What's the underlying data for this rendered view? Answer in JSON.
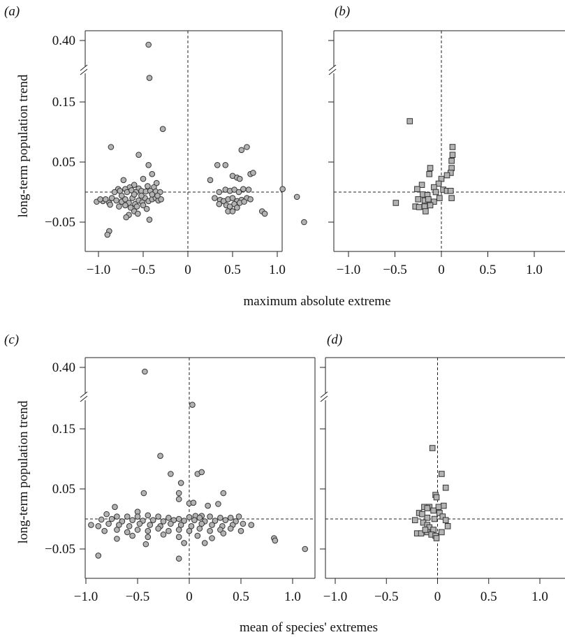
{
  "figure": {
    "xlabel_top": "maximum absolute extreme",
    "xlabel_bottom": "mean of species' extremes",
    "ylabel": "long-term population trend"
  },
  "chart_data": [
    {
      "panel": "(a)",
      "type": "scatter",
      "marker": "circle",
      "xlabel": "maximum absolute extreme",
      "ylabel": "long-term population trend",
      "xlim": [
        -1.1,
        1.35
      ],
      "x_ticks": [
        "−1.0",
        "−0.5",
        "0",
        "0.5",
        "1.0"
      ],
      "x_tick_values": [
        -1.0,
        -0.5,
        0,
        0.5,
        1.0
      ],
      "y_ticks": [
        "0.40",
        "0.15",
        "0.05",
        "−0.05"
      ],
      "y_tick_values": [
        0.4,
        0.15,
        0.05,
        -0.05
      ],
      "y_axis_break": true,
      "reference_lines": {
        "x": 0,
        "y": 0
      },
      "points": [
        [
          -0.44,
          0.385
        ],
        [
          -0.43,
          0.19
        ],
        [
          -0.28,
          0.105
        ],
        [
          -0.86,
          0.075
        ],
        [
          -0.55,
          0.062
        ],
        [
          -0.44,
          0.045
        ],
        [
          -0.4,
          0.03
        ],
        [
          -0.72,
          0.02
        ],
        [
          -0.5,
          0.022
        ],
        [
          -0.35,
          0.015
        ],
        [
          -0.6,
          0.012
        ],
        [
          -0.65,
          0.008
        ],
        [
          -0.78,
          0.005
        ],
        [
          -0.7,
          0.005
        ],
        [
          -0.55,
          0.006
        ],
        [
          -0.45,
          0.01
        ],
        [
          -0.38,
          0.008
        ],
        [
          -0.82,
          0.0
        ],
        [
          -0.76,
          0.002
        ],
        [
          -0.68,
          0.0
        ],
        [
          -0.63,
          0.003
        ],
        [
          -0.58,
          0.0
        ],
        [
          -0.52,
          0.002
        ],
        [
          -0.47,
          0.001
        ],
        [
          -0.42,
          0.002
        ],
        [
          -0.36,
          0.001
        ],
        [
          -0.31,
          0.0
        ],
        [
          -0.95,
          -0.015
        ],
        [
          -0.92,
          -0.012
        ],
        [
          -0.88,
          -0.018
        ],
        [
          -0.85,
          -0.01
        ],
        [
          -0.8,
          -0.014
        ],
        [
          -0.74,
          -0.016
        ],
        [
          -0.7,
          -0.012
        ],
        [
          -0.66,
          -0.018
        ],
        [
          -0.62,
          -0.01
        ],
        [
          -0.59,
          -0.02
        ],
        [
          -0.55,
          -0.014
        ],
        [
          -0.51,
          -0.017
        ],
        [
          -0.48,
          -0.01
        ],
        [
          -0.44,
          -0.015
        ],
        [
          -0.4,
          -0.012
        ],
        [
          -0.36,
          -0.01
        ],
        [
          -0.33,
          -0.014
        ],
        [
          -0.3,
          -0.012
        ],
        [
          -1.02,
          -0.016
        ],
        [
          -0.87,
          -0.021
        ],
        [
          -0.77,
          -0.024
        ],
        [
          -0.7,
          -0.022
        ],
        [
          -0.64,
          -0.026
        ],
        [
          -0.57,
          -0.024
        ],
        [
          -0.5,
          -0.022
        ],
        [
          -0.46,
          -0.028
        ],
        [
          -0.6,
          -0.032
        ],
        [
          -0.66,
          -0.038
        ],
        [
          -0.69,
          -0.042
        ],
        [
          -0.56,
          -0.036
        ],
        [
          -0.43,
          -0.046
        ],
        [
          -0.88,
          -0.065
        ],
        [
          -0.9,
          -0.071
        ],
        [
          -0.98,
          -0.012
        ],
        [
          -0.74,
          -0.006
        ],
        [
          -0.6,
          -0.004
        ],
        [
          -0.52,
          -0.006
        ],
        [
          -0.4,
          -0.004
        ],
        [
          -0.34,
          -0.006
        ],
        [
          0.33,
          0.045
        ],
        [
          0.42,
          0.045
        ],
        [
          0.25,
          0.02
        ],
        [
          0.5,
          0.027
        ],
        [
          0.55,
          0.024
        ],
        [
          0.58,
          0.022
        ],
        [
          0.6,
          0.07
        ],
        [
          0.66,
          0.075
        ],
        [
          0.7,
          0.03
        ],
        [
          0.73,
          0.032
        ],
        [
          0.35,
          0.0
        ],
        [
          0.42,
          0.004
        ],
        [
          0.47,
          0.002
        ],
        [
          0.52,
          0.004
        ],
        [
          0.57,
          0.0
        ],
        [
          0.62,
          0.005
        ],
        [
          0.68,
          0.004
        ],
        [
          0.3,
          -0.01
        ],
        [
          0.36,
          -0.013
        ],
        [
          0.4,
          -0.015
        ],
        [
          0.45,
          -0.012
        ],
        [
          0.5,
          -0.01
        ],
        [
          0.55,
          -0.015
        ],
        [
          0.6,
          -0.013
        ],
        [
          0.66,
          -0.01
        ],
        [
          0.7,
          -0.012
        ],
        [
          0.35,
          -0.02
        ],
        [
          0.43,
          -0.022
        ],
        [
          0.47,
          -0.024
        ],
        [
          0.52,
          -0.02
        ],
        [
          0.58,
          -0.018
        ],
        [
          0.63,
          -0.016
        ],
        [
          0.45,
          -0.032
        ],
        [
          0.5,
          -0.032
        ],
        [
          0.55,
          -0.026
        ],
        [
          0.83,
          -0.032
        ],
        [
          0.86,
          -0.036
        ],
        [
          1.06,
          0.005
        ],
        [
          1.22,
          -0.008
        ],
        [
          1.3,
          -0.05
        ]
      ]
    },
    {
      "panel": "(b)",
      "type": "scatter",
      "marker": "square",
      "xlim": [
        -1.1,
        1.35
      ],
      "x_ticks": [
        "−1.0",
        "−0.5",
        "0",
        "0.5",
        "1.0"
      ],
      "x_tick_values": [
        -1.0,
        -0.5,
        0,
        0.5,
        1.0
      ],
      "y_axis_break": true,
      "reference_lines": {
        "x": 0,
        "y": 0
      },
      "points": [
        [
          -0.34,
          0.118
        ],
        [
          0.12,
          0.075
        ],
        [
          0.12,
          0.062
        ],
        [
          0.11,
          0.052
        ],
        [
          0.11,
          0.04
        ],
        [
          0.1,
          0.032
        ],
        [
          0.06,
          0.028
        ],
        [
          -0.12,
          0.04
        ],
        [
          -0.13,
          0.03
        ],
        [
          0.0,
          0.022
        ],
        [
          -0.03,
          0.014
        ],
        [
          -0.21,
          0.012
        ],
        [
          -0.08,
          0.008
        ],
        [
          0.02,
          0.004
        ],
        [
          0.06,
          0.002
        ],
        [
          0.1,
          0.002
        ],
        [
          -0.26,
          0.005
        ],
        [
          -0.2,
          -0.004
        ],
        [
          -0.15,
          -0.005
        ],
        [
          -0.06,
          0.0
        ],
        [
          -0.25,
          -0.012
        ],
        [
          -0.18,
          -0.014
        ],
        [
          -0.14,
          -0.012
        ],
        [
          -0.08,
          -0.016
        ],
        [
          -0.49,
          -0.018
        ],
        [
          -0.28,
          -0.024
        ],
        [
          -0.24,
          -0.025
        ],
        [
          -0.18,
          -0.024
        ],
        [
          -0.12,
          -0.022
        ],
        [
          -0.02,
          -0.01
        ],
        [
          0.11,
          -0.01
        ],
        [
          -0.17,
          -0.032
        ]
      ]
    },
    {
      "panel": "(c)",
      "type": "scatter",
      "marker": "circle",
      "xlabel": "mean of species' extremes",
      "ylabel": "long-term population trend",
      "xlim": [
        -1.1,
        1.2
      ],
      "x_ticks": [
        "−1.0",
        "−0.5",
        "0",
        "0.5",
        "1.0"
      ],
      "x_tick_values": [
        -1.0,
        -0.5,
        0,
        0.5,
        1.0
      ],
      "y_ticks": [
        "0.40",
        "0.15",
        "0.05",
        "−0.05"
      ],
      "y_tick_values": [
        0.4,
        0.15,
        0.05,
        -0.05
      ],
      "y_axis_break": true,
      "reference_lines": {
        "x": 0,
        "y": 0
      },
      "points": [
        [
          -0.43,
          0.385
        ],
        [
          0.03,
          0.19
        ],
        [
          -0.28,
          0.105
        ],
        [
          -0.18,
          0.075
        ],
        [
          0.08,
          0.075
        ],
        [
          0.12,
          0.078
        ],
        [
          -0.08,
          0.06
        ],
        [
          -0.44,
          0.043
        ],
        [
          0.0,
          0.026
        ],
        [
          0.04,
          0.027
        ],
        [
          -0.1,
          0.043
        ],
        [
          0.33,
          0.043
        ],
        [
          -0.1,
          0.033
        ],
        [
          0.18,
          0.022
        ],
        [
          0.28,
          0.025
        ],
        [
          -0.72,
          0.02
        ],
        [
          -0.5,
          0.012
        ],
        [
          0.06,
          0.005
        ],
        [
          0.12,
          0.005
        ],
        [
          -0.8,
          0.008
        ],
        [
          -0.7,
          0.004
        ],
        [
          -0.6,
          0.004
        ],
        [
          -0.5,
          0.004
        ],
        [
          -0.4,
          0.006
        ],
        [
          -0.3,
          0.004
        ],
        [
          -0.2,
          0.002
        ],
        [
          -0.1,
          0.0
        ],
        [
          0.0,
          0.003
        ],
        [
          0.1,
          0.002
        ],
        [
          0.2,
          0.004
        ],
        [
          0.3,
          0.002
        ],
        [
          0.4,
          0.002
        ],
        [
          0.48,
          0.004
        ],
        [
          -0.85,
          -0.001
        ],
        [
          -0.75,
          0.0
        ],
        [
          -0.65,
          -0.004
        ],
        [
          -0.55,
          -0.002
        ],
        [
          -0.45,
          -0.003
        ],
        [
          -0.35,
          -0.002
        ],
        [
          -0.25,
          -0.004
        ],
        [
          -0.15,
          -0.002
        ],
        [
          -0.05,
          -0.003
        ],
        [
          0.05,
          -0.002
        ],
        [
          0.15,
          -0.004
        ],
        [
          0.25,
          -0.003
        ],
        [
          0.35,
          -0.002
        ],
        [
          0.45,
          -0.004
        ],
        [
          -0.95,
          -0.01
        ],
        [
          -0.88,
          -0.012
        ],
        [
          -0.78,
          -0.008
        ],
        [
          -0.68,
          -0.01
        ],
        [
          -0.58,
          -0.012
        ],
        [
          -0.48,
          -0.008
        ],
        [
          -0.38,
          -0.01
        ],
        [
          -0.28,
          -0.012
        ],
        [
          -0.18,
          -0.008
        ],
        [
          -0.08,
          -0.01
        ],
        [
          0.02,
          -0.012
        ],
        [
          0.12,
          -0.008
        ],
        [
          0.22,
          -0.01
        ],
        [
          0.32,
          -0.012
        ],
        [
          0.42,
          -0.01
        ],
        [
          0.52,
          -0.008
        ],
        [
          0.6,
          -0.01
        ],
        [
          -0.82,
          -0.02
        ],
        [
          -0.7,
          -0.018
        ],
        [
          -0.6,
          -0.022
        ],
        [
          -0.5,
          -0.018
        ],
        [
          -0.4,
          -0.02
        ],
        [
          -0.3,
          -0.016
        ],
        [
          -0.2,
          -0.02
        ],
        [
          -0.1,
          -0.018
        ],
        [
          0.0,
          -0.02
        ],
        [
          0.1,
          -0.016
        ],
        [
          0.2,
          -0.02
        ],
        [
          0.3,
          -0.018
        ],
        [
          0.4,
          -0.016
        ],
        [
          0.5,
          -0.02
        ],
        [
          -0.7,
          -0.033
        ],
        [
          -0.55,
          -0.028
        ],
        [
          -0.4,
          -0.03
        ],
        [
          -0.25,
          -0.026
        ],
        [
          -0.1,
          -0.03
        ],
        [
          0.08,
          -0.028
        ],
        [
          0.22,
          -0.032
        ],
        [
          0.33,
          -0.024
        ],
        [
          0.82,
          -0.032
        ],
        [
          0.83,
          -0.036
        ],
        [
          -0.42,
          -0.042
        ],
        [
          -0.05,
          -0.04
        ],
        [
          0.15,
          -0.04
        ],
        [
          -0.1,
          -0.066
        ],
        [
          -0.88,
          -0.061
        ],
        [
          1.12,
          -0.05
        ]
      ]
    },
    {
      "panel": "(d)",
      "type": "scatter",
      "marker": "square",
      "xlim": [
        -1.1,
        1.2
      ],
      "x_ticks": [
        "−1.0",
        "−0.5",
        "0",
        "0.5",
        "1.0"
      ],
      "x_tick_values": [
        -1.0,
        -0.5,
        0,
        0.5,
        1.0
      ],
      "y_axis_break": true,
      "reference_lines": {
        "x": 0,
        "y": 0
      },
      "points": [
        [
          -0.05,
          0.118
        ],
        [
          0.04,
          0.075
        ],
        [
          0.08,
          0.052
        ],
        [
          -0.02,
          0.04
        ],
        [
          -0.01,
          0.036
        ],
        [
          0.06,
          0.022
        ],
        [
          0.01,
          0.02
        ],
        [
          -0.13,
          0.02
        ],
        [
          -0.08,
          0.02
        ],
        [
          -0.1,
          0.018
        ],
        [
          -0.04,
          0.014
        ],
        [
          -0.18,
          0.01
        ],
        [
          -0.15,
          0.008
        ],
        [
          0.02,
          0.01
        ],
        [
          0.05,
          0.004
        ],
        [
          -0.1,
          0.002
        ],
        [
          0.08,
          -0.002
        ],
        [
          -0.03,
          0.0
        ],
        [
          -0.22,
          -0.002
        ],
        [
          -0.14,
          -0.006
        ],
        [
          -0.1,
          -0.01
        ],
        [
          0.1,
          -0.012
        ],
        [
          -0.08,
          -0.014
        ],
        [
          -0.04,
          -0.018
        ],
        [
          0.04,
          -0.022
        ],
        [
          -0.2,
          -0.024
        ],
        [
          -0.16,
          -0.024
        ],
        [
          -0.1,
          -0.022
        ],
        [
          -0.06,
          -0.026
        ],
        [
          -0.02,
          -0.028
        ],
        [
          -0.12,
          -0.018
        ],
        [
          -0.01,
          -0.032
        ]
      ]
    }
  ]
}
